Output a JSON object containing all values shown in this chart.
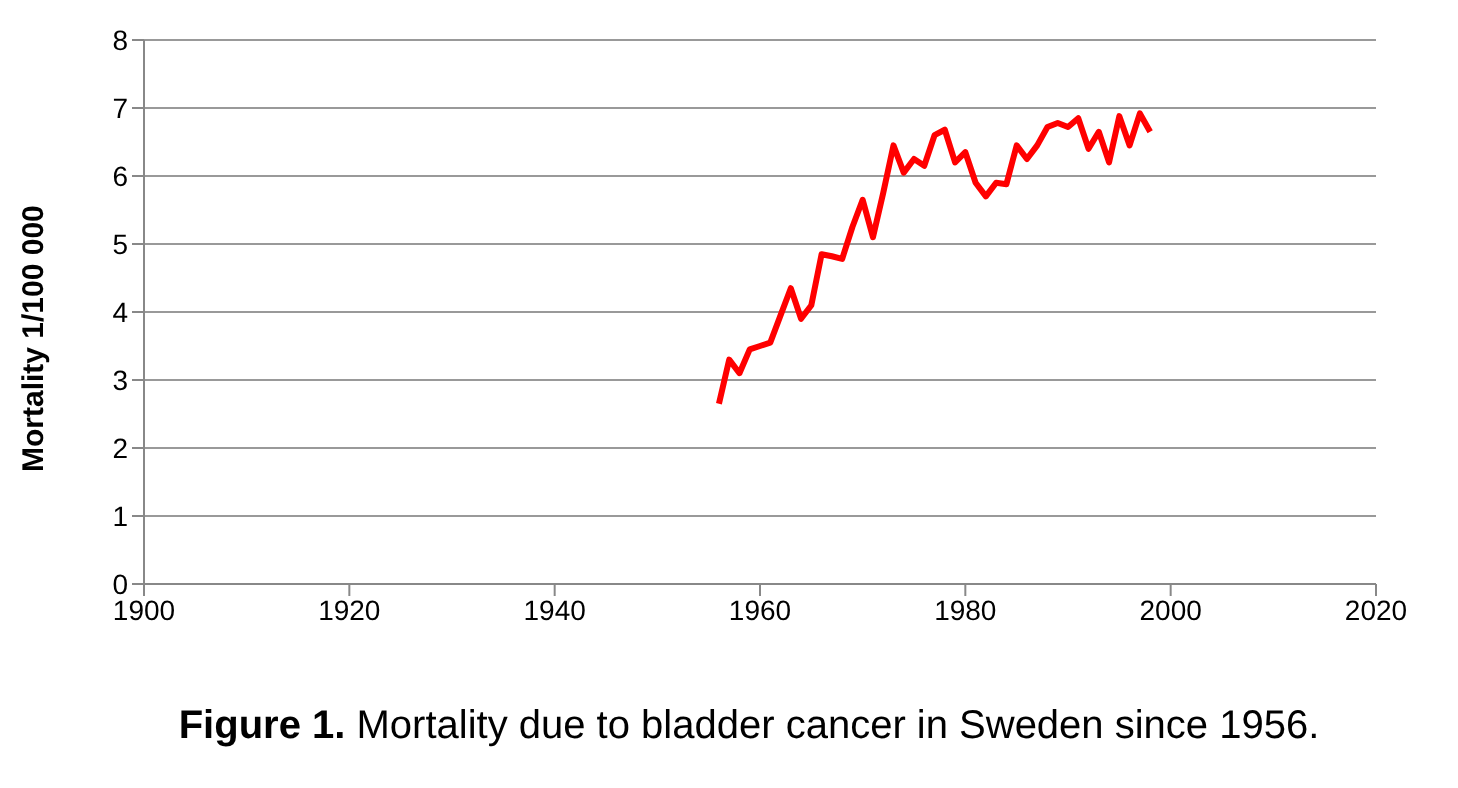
{
  "chart_data": {
    "type": "line",
    "title": "Figure 1. Mortality due to bladder cancer in Sweden since 1956.",
    "ylabel": "Mortality 1/100 000",
    "x": [
      1956,
      1957,
      1958,
      1959,
      1960,
      1961,
      1962,
      1963,
      1964,
      1965,
      1966,
      1967,
      1968,
      1969,
      1970,
      1971,
      1972,
      1973,
      1974,
      1975,
      1976,
      1977,
      1978,
      1979,
      1980,
      1981,
      1982,
      1983,
      1984,
      1985,
      1986,
      1987,
      1988,
      1989,
      1990,
      1991,
      1992,
      1993,
      1994,
      1995,
      1996,
      1997,
      1998
    ],
    "series": [
      {
        "color": "#ff0000",
        "values": [
          2.65,
          3.3,
          3.1,
          3.45,
          3.5,
          3.55,
          3.95,
          4.35,
          3.9,
          4.1,
          4.85,
          4.82,
          4.78,
          5.25,
          5.65,
          5.1,
          5.75,
          6.45,
          6.05,
          6.25,
          6.15,
          6.6,
          6.68,
          6.2,
          6.35,
          5.9,
          5.7,
          5.9,
          5.88,
          6.45,
          6.25,
          6.45,
          6.72,
          6.78,
          6.72,
          6.85,
          6.4,
          6.65,
          6.2,
          6.88,
          6.45,
          6.92,
          6.65
        ]
      }
    ],
    "xlim": [
      1900,
      2020
    ],
    "xticks": [
      1900,
      1920,
      1940,
      1960,
      1980,
      2000,
      2020
    ],
    "ylim": [
      0,
      8
    ],
    "yticks": [
      0,
      1,
      2,
      3,
      4,
      5,
      6,
      7,
      8
    ],
    "grid": "y",
    "marker": "none",
    "line_style": "solid"
  }
}
